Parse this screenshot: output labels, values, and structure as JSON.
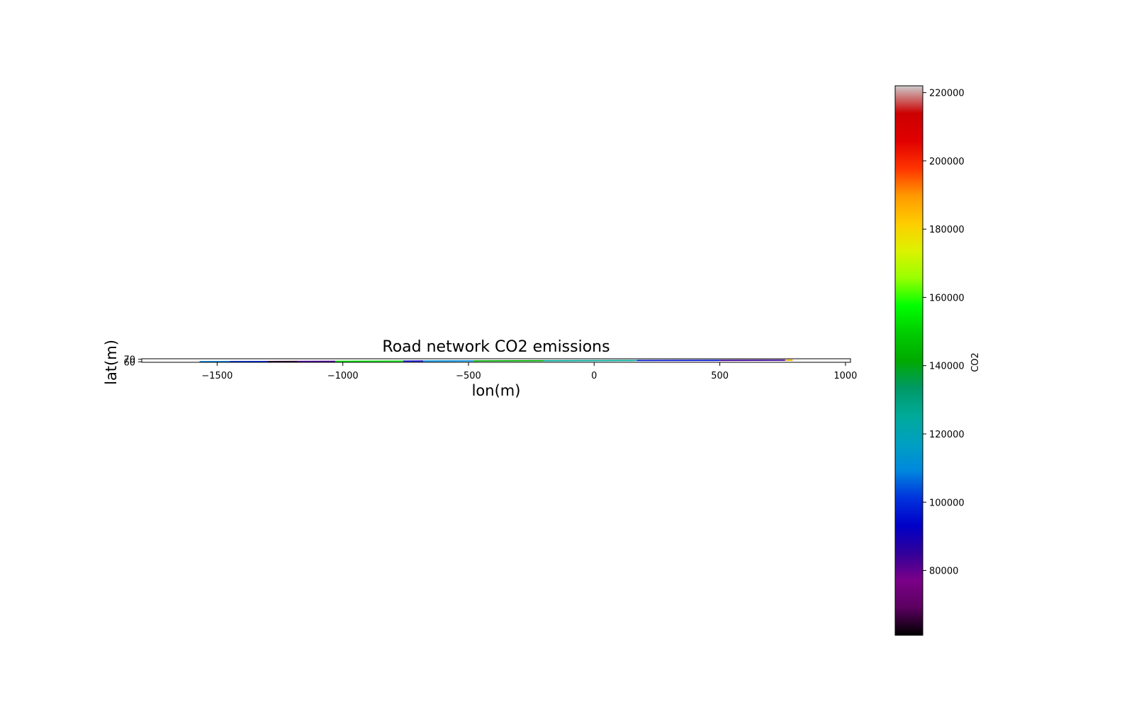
{
  "figure": {
    "title": "Road network CO2 emissions",
    "xlabel": "lon(m)",
    "ylabel": "lat(m)"
  },
  "chart_data": {
    "type": "line",
    "title": "Road network CO2 emissions",
    "xlabel": "lon(m)",
    "ylabel": "lat(m)",
    "xlim": [
      -1800,
      1020
    ],
    "ylim": [
      58,
      72
    ],
    "xticks": [
      -1500,
      -1000,
      -500,
      0,
      500,
      1000
    ],
    "xtick_labels": [
      "−1500",
      "−1000",
      "−500",
      "0",
      "500",
      "1000"
    ],
    "yticks": [
      60,
      70
    ],
    "ytick_labels": [
      "60",
      "70"
    ],
    "grid": false,
    "colormap": "nipy_spectral",
    "colorbar": {
      "label": "CO2",
      "vmin": 61000,
      "vmax": 222000,
      "ticks": [
        80000,
        100000,
        120000,
        140000,
        160000,
        180000,
        200000,
        220000
      ],
      "tick_labels": [
        "80000",
        "100000",
        "120000",
        "140000",
        "160000",
        "180000",
        "200000",
        "220000"
      ]
    },
    "segments": [
      {
        "x": [
          -1570,
          -1450
        ],
        "y": [
          60.5,
          60.8
        ],
        "co2": 108000
      },
      {
        "x": [
          -1450,
          -1300
        ],
        "y": [
          60.8,
          61.2
        ],
        "co2": 100000
      },
      {
        "x": [
          -1300,
          -1180
        ],
        "y": [
          61.2,
          61.5
        ],
        "co2": 65000
      },
      {
        "x": [
          -1180,
          -1030
        ],
        "y": [
          61.5,
          61.9
        ],
        "co2": 82000
      },
      {
        "x": [
          -1030,
          -760
        ],
        "y": [
          61.9,
          62.6
        ],
        "co2": 152000
      },
      {
        "x": [
          -760,
          -680
        ],
        "y": [
          62.6,
          62.8
        ],
        "co2": 92000
      },
      {
        "x": [
          -680,
          -480
        ],
        "y": [
          62.8,
          63.4
        ],
        "co2": 110000
      },
      {
        "x": [
          -480,
          -200
        ],
        "y": [
          63.4,
          64.2
        ],
        "co2": 142000
      },
      {
        "x": [
          -200,
          170
        ],
        "y": [
          64.2,
          65.3
        ],
        "co2": 125000
      },
      {
        "x": [
          170,
          500
        ],
        "y": [
          65.3,
          65.9
        ],
        "co2": 96000
      },
      {
        "x": [
          500,
          760
        ],
        "y": [
          65.9,
          66.4
        ],
        "co2": 84000
      },
      {
        "x": [
          760,
          790
        ],
        "y": [
          66.4,
          66.5
        ],
        "co2": 186000
      }
    ]
  }
}
